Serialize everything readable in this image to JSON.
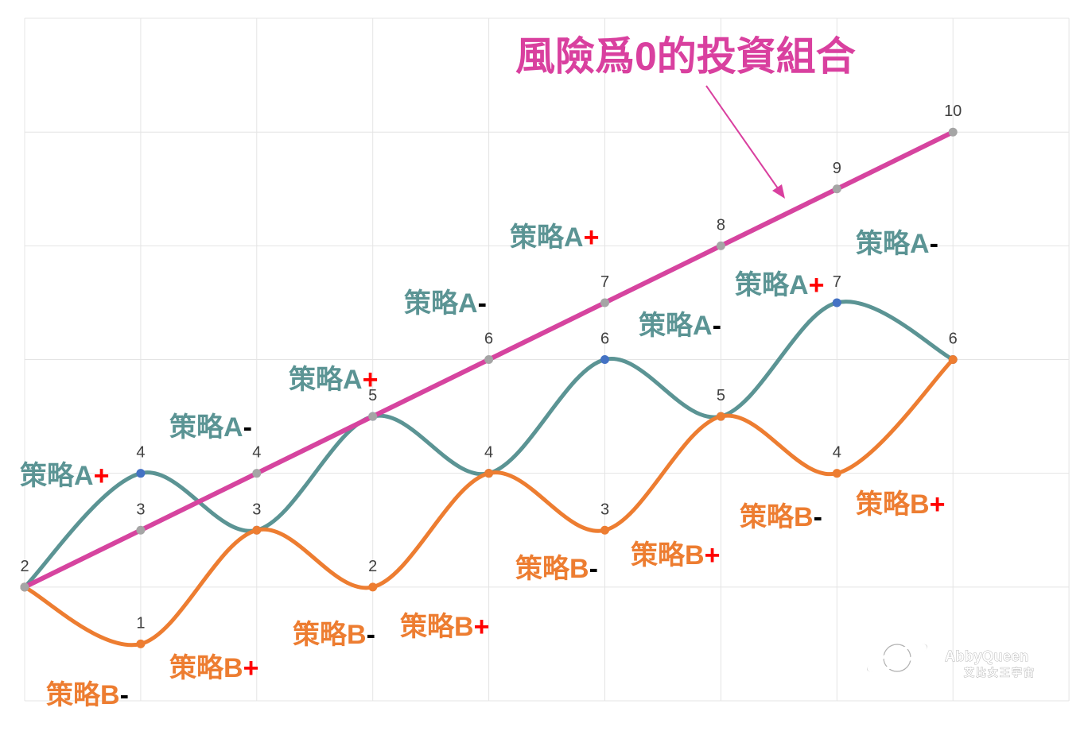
{
  "chart_data": {
    "type": "line",
    "callout": "風險爲0的投資組合",
    "x": [
      0,
      1,
      2,
      3,
      4,
      5,
      6,
      7,
      8
    ],
    "xlim": [
      0,
      9
    ],
    "ylim": [
      0,
      12
    ],
    "y_grid_step": 2,
    "grid": {
      "x": true,
      "y": true
    },
    "legend": false,
    "tick_labels": false,
    "data_labels": true,
    "series": [
      {
        "values": [
          2,
          4,
          3,
          5,
          4,
          6,
          5,
          7,
          6
        ],
        "color": "#5b9494",
        "marker_color": "#4472c4",
        "smooth": true,
        "width": 5
      },
      {
        "values": [
          2,
          1,
          3,
          2,
          4,
          3,
          5,
          4,
          6
        ],
        "color": "#ed7d31",
        "marker_color": "#ed7d31",
        "smooth": true,
        "width": 5
      },
      {
        "values": [
          2,
          3,
          4,
          5,
          6,
          7,
          8,
          9,
          10
        ],
        "color": "#d6449f",
        "marker_color": "#a5a5a5",
        "smooth": false,
        "width": 6
      }
    ],
    "annotations": [
      {
        "label": "策略A",
        "sign": "+"
      },
      {
        "label": "策略A",
        "sign": "-"
      },
      {
        "label": "策略A",
        "sign": "+"
      },
      {
        "label": "策略A",
        "sign": "-"
      },
      {
        "label": "策略A",
        "sign": "+"
      },
      {
        "label": "策略A",
        "sign": "-"
      },
      {
        "label": "策略A",
        "sign": "+"
      },
      {
        "label": "策略A",
        "sign": "-"
      },
      {
        "label": "策略B",
        "sign": "-"
      },
      {
        "label": "策略B",
        "sign": "+"
      },
      {
        "label": "策略B",
        "sign": "-"
      },
      {
        "label": "策略B",
        "sign": "+"
      },
      {
        "label": "策略B",
        "sign": "-"
      },
      {
        "label": "策略B",
        "sign": "+"
      },
      {
        "label": "策略B",
        "sign": "-"
      },
      {
        "label": "策略B",
        "sign": "+"
      }
    ]
  },
  "colors": {
    "callout": "#d9409f",
    "strategy_a": "#5b9494",
    "strategy_b": "#ed7d31",
    "sign_plus": "#ff0000",
    "sign_minus": "#000000",
    "grid": "#e4e4e4",
    "data_label": "#404040"
  },
  "watermark": {
    "brand": "AbbyQueen",
    "tagline": "艾比女王宇宙"
  }
}
